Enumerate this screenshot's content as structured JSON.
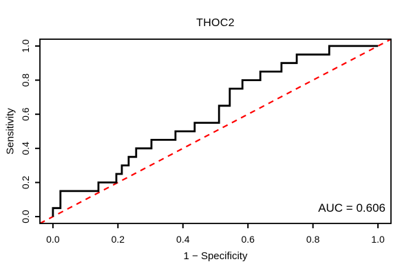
{
  "title": "THOC2",
  "xlabel": "1 − Specificity",
  "ylabel": "Sensitivity",
  "annotation": "AUC = 0.606",
  "colors": {
    "curve": "#000000",
    "diagonal": "#FF0000",
    "frame": "#000000",
    "text": "#000000",
    "background": "#FFFFFF"
  },
  "chart_data": {
    "type": "line",
    "subtype": "roc-step-curve",
    "title": "THOC2",
    "xlabel": "1 − Specificity",
    "ylabel": "Sensitivity",
    "xlim": [
      0,
      1
    ],
    "ylim": [
      0,
      1
    ],
    "axis_padding_fraction": 0.04,
    "x_ticks": [
      "0.0",
      "0.2",
      "0.4",
      "0.6",
      "0.8",
      "1.0"
    ],
    "y_ticks": [
      "0.0",
      "0.2",
      "0.4",
      "0.6",
      "0.8",
      "1.0"
    ],
    "grid": false,
    "legend": "none",
    "auc": 0.606,
    "annotations": [
      {
        "text": "AUC = 0.606",
        "position": "bottom-right"
      }
    ],
    "series": [
      {
        "name": "ROC curve",
        "color": "#000000",
        "line_style": "solid",
        "step": "after",
        "points": [
          [
            0,
            0
          ],
          [
            0,
            0.05
          ],
          [
            0.023,
            0.15
          ],
          [
            0.14,
            0.2
          ],
          [
            0.195,
            0.25
          ],
          [
            0.212,
            0.3
          ],
          [
            0.233,
            0.35
          ],
          [
            0.256,
            0.4
          ],
          [
            0.303,
            0.45
          ],
          [
            0.377,
            0.5
          ],
          [
            0.436,
            0.55
          ],
          [
            0.511,
            0.65
          ],
          [
            0.544,
            0.75
          ],
          [
            0.583,
            0.8
          ],
          [
            0.638,
            0.85
          ],
          [
            0.703,
            0.9
          ],
          [
            0.75,
            0.95
          ],
          [
            0.85,
            1
          ],
          [
            1,
            1
          ]
        ]
      },
      {
        "name": "chance diagonal",
        "color": "#FF0000",
        "line_style": "dashed",
        "points": [
          [
            0,
            0
          ],
          [
            1,
            1
          ]
        ]
      }
    ]
  }
}
